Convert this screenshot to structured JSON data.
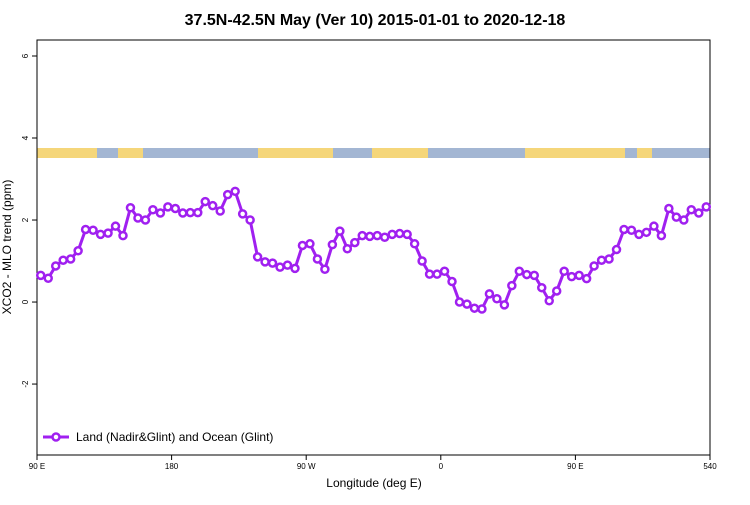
{
  "chart_data": {
    "type": "line",
    "title": "37.5N-42.5N May (Ver 10)   2015-01-01 to 2020-12-18",
    "x_label": "Longitude (deg E)",
    "y_label": "XCO2 - MLO trend (ppm)",
    "x": [
      92.5,
      97.5,
      102.5,
      107.5,
      112.5,
      117.5,
      122.5,
      127.5,
      132.5,
      137.5,
      142.5,
      147.5,
      152.5,
      157.5,
      162.5,
      167.5,
      172.5,
      177.5,
      182.5,
      187.5,
      192.5,
      197.5,
      202.5,
      207.5,
      212.5,
      217.5,
      222.5,
      227.5,
      232.5,
      237.5,
      242.5,
      247.5,
      252.5,
      257.5,
      262.5,
      267.5,
      272.5,
      277.5,
      282.5,
      287.5,
      292.5,
      297.5,
      302.5,
      307.5,
      312.5,
      317.5,
      322.5,
      327.5,
      332.5,
      337.5,
      342.5,
      347.5,
      352.5,
      357.5,
      362.5,
      367.5,
      372.5,
      377.5,
      382.5,
      387.5,
      392.5,
      397.5,
      402.5,
      407.5,
      412.5,
      417.5,
      422.5,
      427.5,
      432.5,
      437.5,
      442.5,
      447.5,
      452.5,
      457.5,
      462.5,
      467.5,
      472.5,
      477.5,
      482.5,
      487.5,
      492.5,
      497.5,
      502.5,
      507.5,
      512.5,
      517.5,
      522.5,
      527.5,
      532.5,
      537.5
    ],
    "series": [
      {
        "name": "Land (Nadir&Glint) and Ocean (Glint)",
        "color": "#a020f0",
        "values": [
          0.65,
          0.58,
          0.88,
          1.02,
          1.05,
          1.25,
          1.77,
          1.75,
          1.65,
          1.68,
          1.85,
          1.62,
          2.3,
          2.05,
          2.0,
          2.25,
          2.17,
          2.32,
          2.28,
          2.17,
          2.18,
          2.18,
          2.45,
          2.35,
          2.22,
          2.62,
          2.7,
          2.15,
          2.0,
          1.1,
          0.98,
          0.95,
          0.85,
          0.9,
          0.82,
          1.38,
          1.42,
          1.05,
          0.8,
          1.4,
          1.73,
          1.3,
          1.45,
          1.62,
          1.6,
          1.62,
          1.58,
          1.65,
          1.67,
          1.65,
          1.42,
          1.0,
          0.68,
          0.68,
          0.75,
          0.5,
          0.0,
          -0.05,
          -0.15,
          -0.17,
          0.2,
          0.08,
          -0.07,
          0.4,
          0.75,
          0.67,
          0.65,
          0.35,
          0.03,
          0.27,
          0.75,
          0.62,
          0.65,
          0.57,
          0.88,
          1.02,
          1.05,
          1.28,
          1.77,
          1.75,
          1.65,
          1.7,
          1.85,
          1.62,
          2.28,
          2.07,
          2.0,
          2.25,
          2.17,
          2.32
        ]
      }
    ],
    "xlim": [
      90,
      540
    ],
    "xticks": [
      {
        "value": 90,
        "label": "90 E"
      },
      180,
      {
        "value": 270,
        "label": "90 W"
      },
      {
        "value": 360,
        "label": "0"
      },
      {
        "value": 450,
        "label": "90 E"
      },
      540
    ],
    "ylim": [
      -3.73,
      6.39
    ],
    "yticks": [
      -2,
      0,
      2,
      4,
      6
    ],
    "legend": "bottom-left"
  }
}
